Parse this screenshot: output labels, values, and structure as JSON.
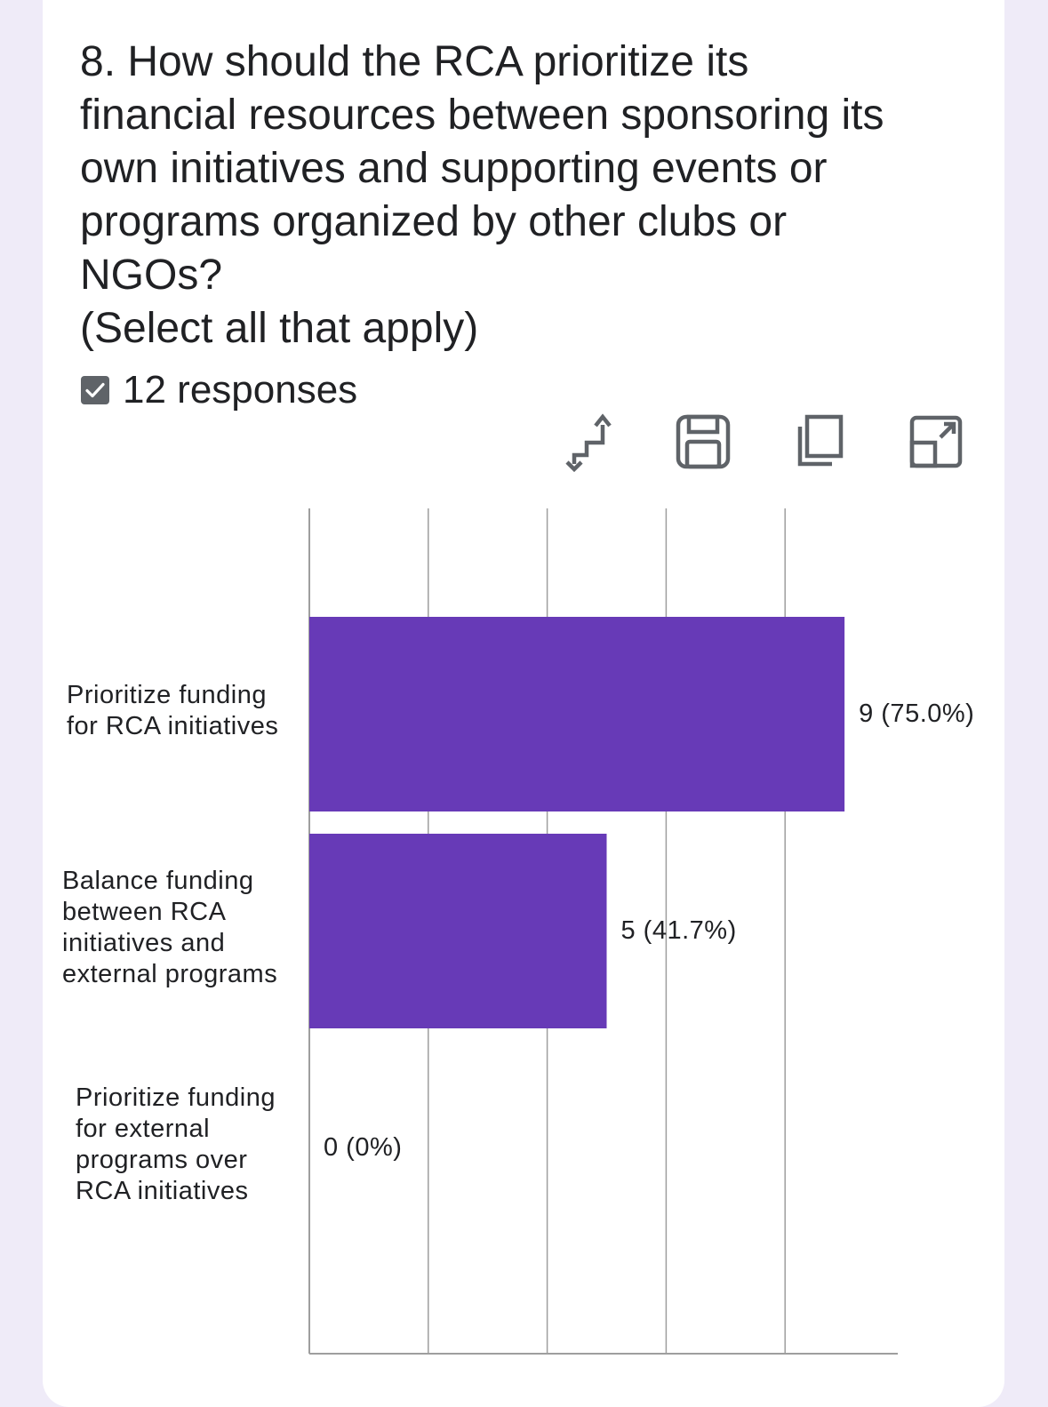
{
  "question": {
    "title_lines": [
      "8. How should the RCA prioritize its",
      "financial resources between sponsoring its",
      "own initiatives and supporting events or",
      "programs organized by other clubs or",
      "NGOs?",
      "(Select all that apply)"
    ],
    "responses_label": "12 responses"
  },
  "toolbar": {
    "icons": [
      "swap-icon",
      "save-icon",
      "copy-icon",
      "expand-icon"
    ]
  },
  "colors": {
    "bar": "#673ab7",
    "grid": "#9e9e9e",
    "background": "#efebf8"
  },
  "chart_data": {
    "type": "bar",
    "orientation": "horizontal",
    "categories": [
      "Prioritize funding for RCA initiatives",
      "Balance funding between RCA initiatives and external programs",
      "Prioritize funding for external programs over RCA initiatives"
    ],
    "category_label_lines": [
      [
        "Prioritize funding",
        "for RCA initiatives"
      ],
      [
        "Balance funding",
        "between RCA",
        "initiatives and",
        "external programs"
      ],
      [
        "Prioritize funding",
        "for external",
        "programs over",
        "RCA initiatives"
      ]
    ],
    "values": [
      9,
      5,
      0
    ],
    "value_labels": [
      "9 (75.0%)",
      "5 (41.7%)",
      "0 (0%)"
    ],
    "xlim": [
      0,
      10
    ],
    "grid": true
  }
}
